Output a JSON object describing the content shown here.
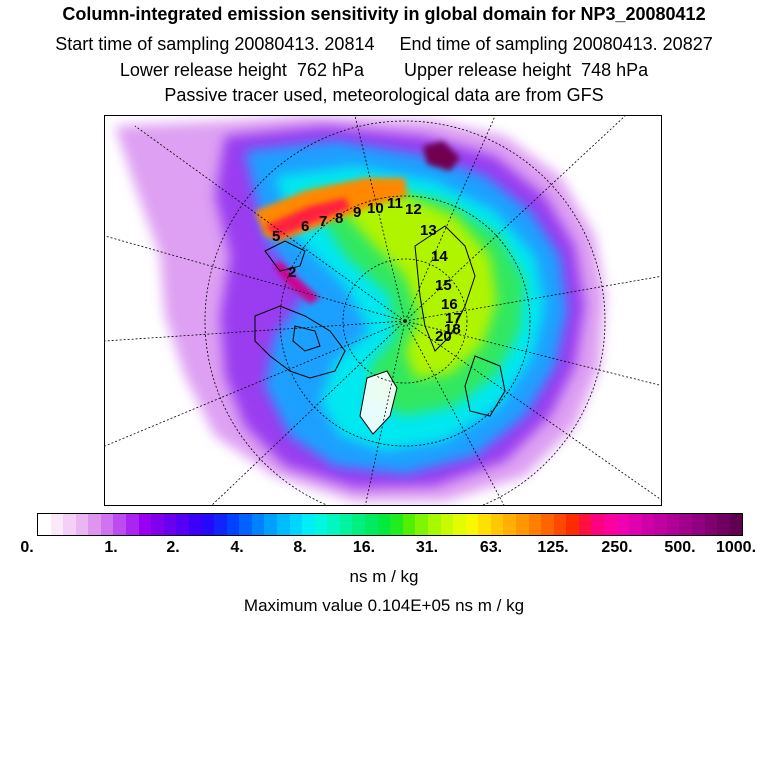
{
  "header": {
    "title": "Column-integrated emission sensitivity in global domain for NP3_20080412",
    "start_label": "Start time of sampling 20080413. 20814",
    "end_label": "End time of sampling 20080413. 20827",
    "lower_label": "Lower release height  762 hPa",
    "upper_label": "Upper release height  748 hPa",
    "line4": "Passive tracer used, meteorological data are from GFS"
  },
  "map": {
    "track_labels": [
      "2",
      "5",
      "6",
      "7",
      "8",
      "9",
      "10",
      "11",
      "12",
      "13",
      "14",
      "15",
      "16",
      "17",
      "18",
      "20"
    ],
    "projection": "polar stereographic, north pole"
  },
  "colorbar": {
    "tick_labels": [
      "0.",
      "1.",
      "2.",
      "4.",
      "8.",
      "16.",
      "31.",
      "63.",
      "125.",
      "250.",
      "500.",
      "1000."
    ],
    "colors": [
      "#ffffff",
      "#fbe8fb",
      "#f4d0f6",
      "#eab6f2",
      "#de95ee",
      "#cf74ee",
      "#bd4cf0",
      "#aa24f2",
      "#9700f0",
      "#8000ee",
      "#6a00f0",
      "#5400f4",
      "#3c00f8",
      "#2608fa",
      "#1024fc",
      "#0042ff",
      "#0062ff",
      "#0082ff",
      "#00a0ff",
      "#00bcff",
      "#00d6ff",
      "#00eef8",
      "#00f8e0",
      "#00f8c0",
      "#00f4a0",
      "#00f080",
      "#00ec60",
      "#00ea40",
      "#20ec20",
      "#50f000",
      "#80f400",
      "#a8f800",
      "#c8fa00",
      "#e4fc00",
      "#f8f800",
      "#ffe000",
      "#ffc800",
      "#ffb000",
      "#ff9800",
      "#ff8000",
      "#ff6400",
      "#ff4800",
      "#ff2c00",
      "#ff1040",
      "#ff0080",
      "#ff00a0",
      "#f000b0",
      "#e000b0",
      "#d000a8",
      "#c000a0",
      "#b00098",
      "#a0008c",
      "#900080",
      "#800070",
      "#700060",
      "#600050"
    ],
    "units": "ns m / kg",
    "max_value_text": "Maximum value  0.104E+05 ns m / kg"
  }
}
